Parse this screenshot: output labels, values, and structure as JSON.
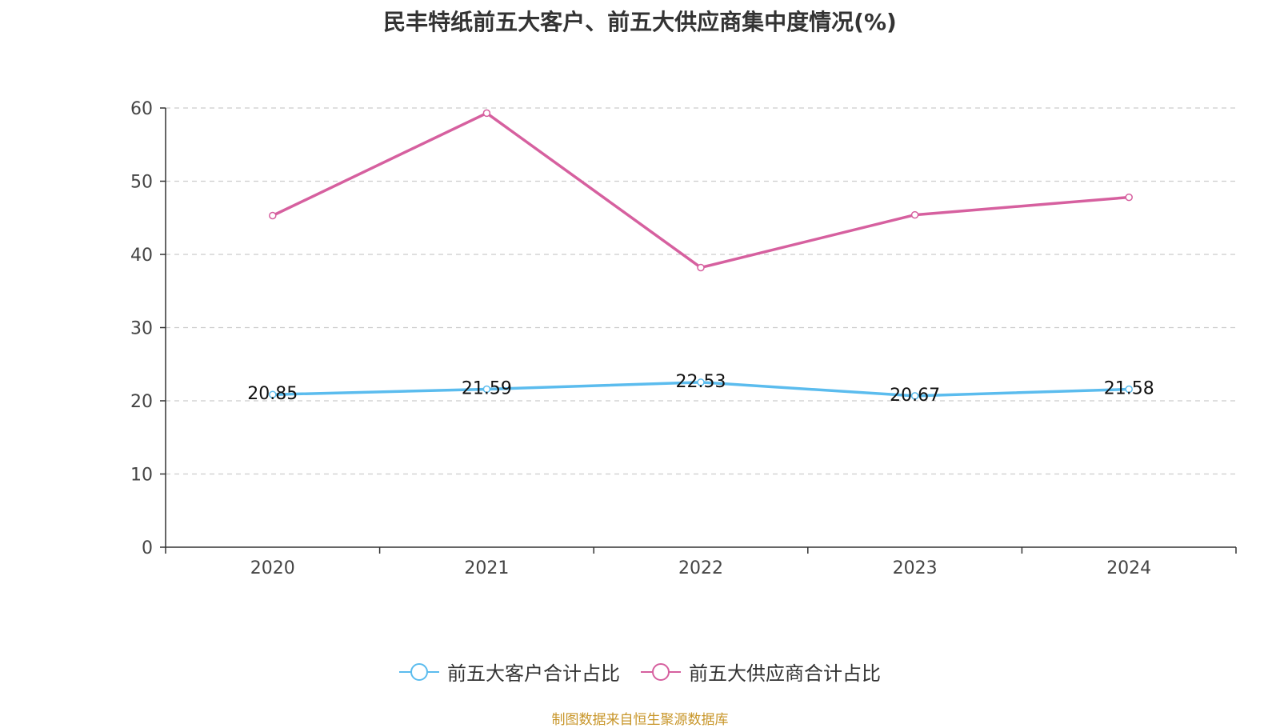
{
  "chart_data": {
    "type": "line",
    "title": "民丰特纸前五大客户、前五大供应商集中度情况(%)",
    "categories": [
      "2020",
      "2021",
      "2022",
      "2023",
      "2024"
    ],
    "ylim": [
      0,
      60
    ],
    "yticks": [
      0,
      10,
      20,
      30,
      40,
      50,
      60
    ],
    "grid": true,
    "legend_position": "bottom",
    "series": [
      {
        "name": "前五大客户合计占比",
        "color": "#5bbcee",
        "values": [
          20.85,
          21.59,
          22.53,
          20.67,
          21.58
        ],
        "labels": [
          "20.85",
          "21.59",
          "22.53",
          "20.67",
          "21.58"
        ]
      },
      {
        "name": "前五大供应商合计占比",
        "color": "#d6609f",
        "values": [
          45.3,
          59.3,
          38.2,
          45.4,
          47.8
        ],
        "labels": []
      }
    ]
  },
  "source_note": "制图数据来自恒生聚源数据库"
}
